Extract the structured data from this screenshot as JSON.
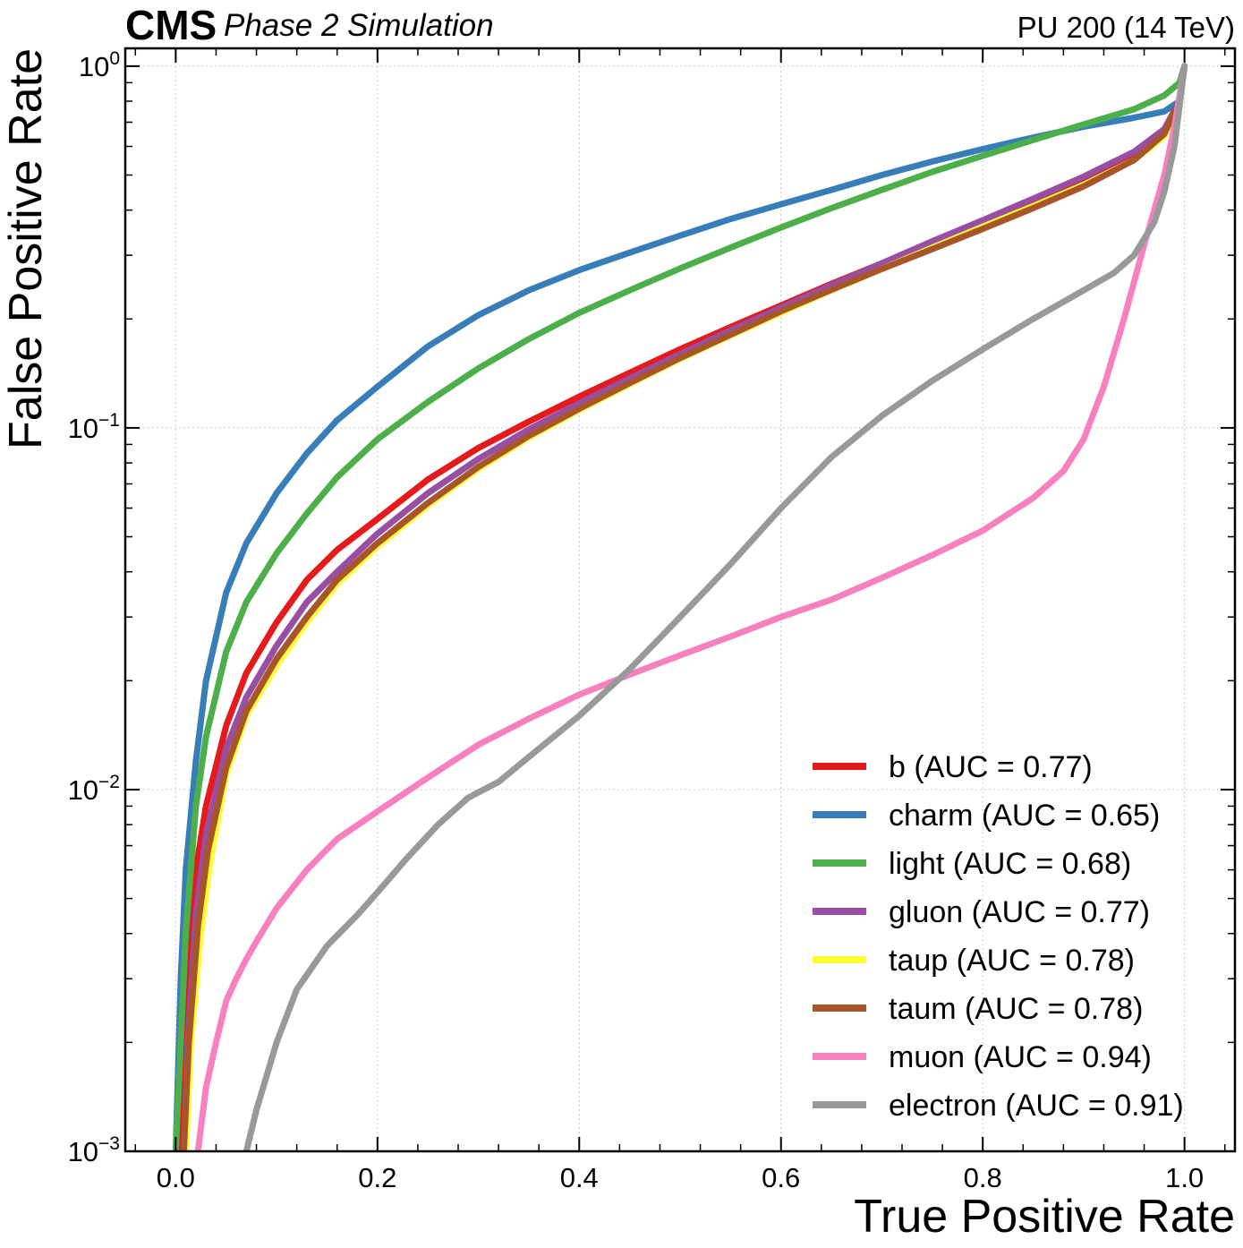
{
  "chart_data": {
    "type": "line",
    "title": "",
    "cms_label": "CMS",
    "cms_sublabel": "Phase 2 Simulation",
    "lumi_label": "PU 200 (14 TeV)",
    "xlabel": "True Positive Rate",
    "ylabel": "False Positive Rate",
    "xlim": [
      -0.05,
      1.05
    ],
    "ylim": [
      0.001,
      1.12
    ],
    "yscale": "log",
    "grid": true,
    "legend_position": "lower-right",
    "x_ticks": [
      {
        "value": 0.0,
        "label": "0.0"
      },
      {
        "value": 0.2,
        "label": "0.2"
      },
      {
        "value": 0.4,
        "label": "0.4"
      },
      {
        "value": 0.6,
        "label": "0.6"
      },
      {
        "value": 0.8,
        "label": "0.8"
      },
      {
        "value": 1.0,
        "label": "1.0"
      }
    ],
    "y_ticks": [
      {
        "value": 0.001,
        "base": "10",
        "exp": "−3"
      },
      {
        "value": 0.01,
        "base": "10",
        "exp": "−2"
      },
      {
        "value": 0.1,
        "base": "10",
        "exp": "−1"
      },
      {
        "value": 1,
        "base": "10",
        "exp": "0"
      }
    ],
    "series": [
      {
        "name": "b",
        "legend": "b (AUC = 0.77)",
        "color": "#e41a1c",
        "x": [
          0.005,
          0.01,
          0.02,
          0.03,
          0.05,
          0.07,
          0.1,
          0.13,
          0.16,
          0.2,
          0.25,
          0.3,
          0.35,
          0.4,
          0.45,
          0.5,
          0.55,
          0.6,
          0.65,
          0.7,
          0.75,
          0.8,
          0.85,
          0.9,
          0.95,
          0.98,
          0.995,
          1.0
        ],
        "y": [
          0.001,
          0.0025,
          0.006,
          0.009,
          0.015,
          0.021,
          0.029,
          0.038,
          0.046,
          0.056,
          0.072,
          0.088,
          0.104,
          0.122,
          0.142,
          0.165,
          0.19,
          0.218,
          0.25,
          0.285,
          0.325,
          0.37,
          0.42,
          0.48,
          0.56,
          0.65,
          0.78,
          1.0
        ]
      },
      {
        "name": "charm",
        "legend": "charm (AUC = 0.65)",
        "color": "#377eb8",
        "x": [
          0.0,
          0.005,
          0.01,
          0.02,
          0.03,
          0.05,
          0.07,
          0.1,
          0.13,
          0.16,
          0.2,
          0.25,
          0.3,
          0.35,
          0.4,
          0.45,
          0.5,
          0.55,
          0.6,
          0.65,
          0.7,
          0.75,
          0.8,
          0.85,
          0.9,
          0.95,
          0.98,
          0.995,
          1.0
        ],
        "y": [
          0.001,
          0.003,
          0.006,
          0.012,
          0.02,
          0.035,
          0.048,
          0.066,
          0.085,
          0.105,
          0.13,
          0.168,
          0.205,
          0.24,
          0.273,
          0.305,
          0.34,
          0.378,
          0.415,
          0.455,
          0.5,
          0.545,
          0.59,
          0.635,
          0.68,
          0.72,
          0.75,
          0.8,
          1.0
        ]
      },
      {
        "name": "light",
        "legend": "light (AUC = 0.68)",
        "color": "#4daf4a",
        "x": [
          0.0,
          0.005,
          0.01,
          0.02,
          0.03,
          0.05,
          0.07,
          0.1,
          0.13,
          0.16,
          0.2,
          0.25,
          0.3,
          0.35,
          0.4,
          0.45,
          0.5,
          0.55,
          0.6,
          0.65,
          0.7,
          0.75,
          0.8,
          0.85,
          0.9,
          0.95,
          0.98,
          0.995,
          1.0
        ],
        "y": [
          0.001,
          0.002,
          0.004,
          0.009,
          0.014,
          0.024,
          0.033,
          0.045,
          0.058,
          0.073,
          0.093,
          0.118,
          0.146,
          0.176,
          0.208,
          0.24,
          0.276,
          0.315,
          0.358,
          0.405,
          0.455,
          0.51,
          0.565,
          0.625,
          0.69,
          0.76,
          0.83,
          0.9,
          1.0
        ]
      },
      {
        "name": "gluon",
        "legend": "gluon (AUC = 0.77)",
        "color": "#984ea3",
        "x": [
          0.008,
          0.012,
          0.02,
          0.03,
          0.05,
          0.07,
          0.1,
          0.13,
          0.16,
          0.2,
          0.25,
          0.3,
          0.35,
          0.4,
          0.45,
          0.5,
          0.55,
          0.6,
          0.65,
          0.7,
          0.75,
          0.8,
          0.85,
          0.9,
          0.95,
          0.98,
          0.995,
          1.0
        ],
        "y": [
          0.001,
          0.002,
          0.0045,
          0.0075,
          0.013,
          0.018,
          0.025,
          0.033,
          0.04,
          0.051,
          0.066,
          0.082,
          0.099,
          0.117,
          0.137,
          0.16,
          0.186,
          0.215,
          0.248,
          0.285,
          0.328,
          0.375,
          0.43,
          0.495,
          0.58,
          0.67,
          0.8,
          1.0
        ]
      },
      {
        "name": "taup",
        "legend": "taup (AUC = 0.78)",
        "color": "#ffff33",
        "x": [
          0.01,
          0.015,
          0.025,
          0.035,
          0.05,
          0.07,
          0.1,
          0.13,
          0.16,
          0.2,
          0.25,
          0.3,
          0.35,
          0.4,
          0.45,
          0.5,
          0.55,
          0.6,
          0.65,
          0.7,
          0.75,
          0.8,
          0.85,
          0.9,
          0.95,
          0.98,
          0.995,
          1.0
        ],
        "y": [
          0.001,
          0.002,
          0.004,
          0.0065,
          0.011,
          0.016,
          0.022,
          0.029,
          0.037,
          0.047,
          0.061,
          0.077,
          0.094,
          0.112,
          0.132,
          0.155,
          0.18,
          0.208,
          0.24,
          0.275,
          0.315,
          0.36,
          0.41,
          0.47,
          0.55,
          0.64,
          0.78,
          1.0
        ]
      },
      {
        "name": "taum",
        "legend": "taum (AUC = 0.78)",
        "color": "#a65628",
        "x": [
          0.008,
          0.013,
          0.022,
          0.032,
          0.05,
          0.07,
          0.1,
          0.13,
          0.16,
          0.2,
          0.25,
          0.3,
          0.35,
          0.4,
          0.45,
          0.5,
          0.55,
          0.6,
          0.65,
          0.7,
          0.75,
          0.8,
          0.85,
          0.9,
          0.95,
          0.98,
          0.995,
          1.0
        ],
        "y": [
          0.001,
          0.002,
          0.0042,
          0.0068,
          0.0115,
          0.0165,
          0.023,
          0.03,
          0.038,
          0.048,
          0.062,
          0.078,
          0.095,
          0.113,
          0.133,
          0.156,
          0.181,
          0.21,
          0.241,
          0.275,
          0.312,
          0.355,
          0.405,
          0.465,
          0.55,
          0.65,
          0.8,
          1.0
        ]
      },
      {
        "name": "muon",
        "legend": "muon (AUC = 0.94)",
        "color": "#f781bf",
        "x": [
          0.022,
          0.03,
          0.04,
          0.05,
          0.06,
          0.07,
          0.08,
          0.1,
          0.13,
          0.16,
          0.2,
          0.25,
          0.3,
          0.35,
          0.4,
          0.45,
          0.5,
          0.55,
          0.6,
          0.65,
          0.7,
          0.75,
          0.8,
          0.85,
          0.88,
          0.9,
          0.92,
          0.94,
          0.96,
          0.98,
          0.99,
          1.0
        ],
        "y": [
          0.001,
          0.0015,
          0.002,
          0.0026,
          0.003,
          0.0034,
          0.0038,
          0.0047,
          0.006,
          0.0073,
          0.0087,
          0.0108,
          0.0133,
          0.0157,
          0.0183,
          0.0208,
          0.0235,
          0.0265,
          0.03,
          0.0335,
          0.0385,
          0.0445,
          0.052,
          0.064,
          0.076,
          0.093,
          0.13,
          0.2,
          0.32,
          0.5,
          0.68,
          1.0
        ]
      },
      {
        "name": "electron",
        "legend": "electron (AUC = 0.91)",
        "color": "#999999",
        "x": [
          0.07,
          0.08,
          0.1,
          0.12,
          0.15,
          0.18,
          0.2,
          0.23,
          0.26,
          0.29,
          0.32,
          0.35,
          0.4,
          0.45,
          0.5,
          0.55,
          0.6,
          0.65,
          0.7,
          0.75,
          0.8,
          0.85,
          0.9,
          0.93,
          0.95,
          0.97,
          0.98,
          0.99,
          1.0
        ],
        "y": [
          0.001,
          0.0013,
          0.002,
          0.0028,
          0.0037,
          0.0045,
          0.0052,
          0.0065,
          0.008,
          0.0095,
          0.0105,
          0.0123,
          0.016,
          0.0215,
          0.03,
          0.042,
          0.06,
          0.083,
          0.108,
          0.135,
          0.165,
          0.2,
          0.24,
          0.268,
          0.3,
          0.37,
          0.45,
          0.6,
          1.0
        ]
      }
    ]
  }
}
